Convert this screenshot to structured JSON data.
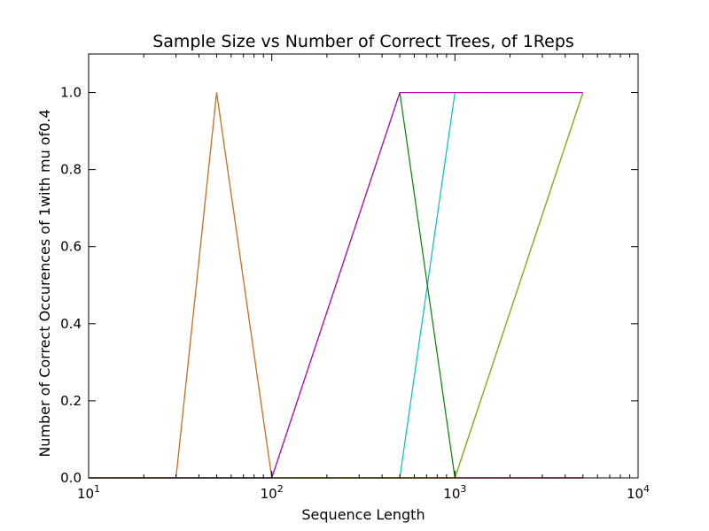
{
  "chart_data": {
    "type": "line",
    "title": "Sample Size vs Number of Correct Trees, of 1Reps",
    "xlabel": "Sequence Length",
    "ylabel": "Number of Correct Occurences of 1with mu of0.4",
    "x_scale": "log",
    "xlim": [
      10,
      10000
    ],
    "ylim": [
      0,
      1.1
    ],
    "x_ticks": [
      {
        "value": 10,
        "base": "10",
        "exp": "1"
      },
      {
        "value": 100,
        "base": "10",
        "exp": "2"
      },
      {
        "value": 1000,
        "base": "10",
        "exp": "3"
      },
      {
        "value": 10000,
        "base": "10",
        "exp": "4"
      }
    ],
    "y_ticks": [
      "0.0",
      "0.2",
      "0.4",
      "0.6",
      "0.8",
      "1.0"
    ],
    "grid": false,
    "legend": "none",
    "x": [
      10,
      20,
      30,
      50,
      100,
      500,
      1000,
      5000
    ],
    "series": [
      {
        "color": "#0000ff",
        "values": [
          0,
          0,
          0,
          0,
          0,
          0,
          0,
          0
        ]
      },
      {
        "color": "#ff0000",
        "values": [
          0,
          0,
          0,
          0,
          0,
          0,
          0,
          0
        ]
      },
      {
        "color": "#00bfbf",
        "values": [
          0,
          0,
          0,
          0,
          0,
          0,
          1,
          1
        ]
      },
      {
        "color": "#c0bf00",
        "values": [
          0,
          0,
          0,
          1,
          0,
          0,
          0,
          1
        ]
      },
      {
        "color": "#008000",
        "values": [
          0,
          0,
          0,
          0,
          0,
          1,
          0,
          1
        ]
      },
      {
        "color": "#c76b2f",
        "values": [
          0,
          0,
          0,
          1,
          0,
          0,
          0,
          0
        ]
      },
      {
        "color": "#bf00bf",
        "values": [
          0,
          0,
          0,
          0,
          0,
          1,
          1,
          1
        ]
      },
      {
        "color": "#98b11c",
        "values": [
          0,
          0,
          0,
          0,
          0,
          0,
          0,
          1
        ]
      }
    ]
  }
}
